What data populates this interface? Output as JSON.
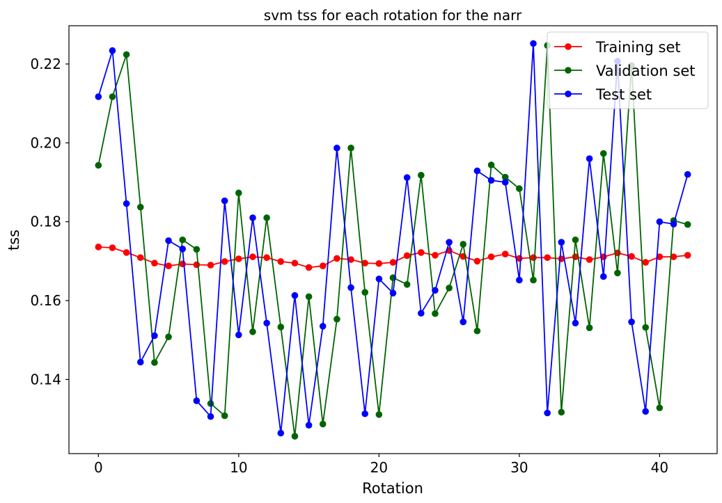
{
  "chart_data": {
    "type": "line",
    "title": "svm tss for each rotation for the narr",
    "xlabel": "Rotation",
    "ylabel": "tss",
    "xlim": [
      -2.1,
      44.1
    ],
    "ylim": [
      0.1212,
      0.2297
    ],
    "xticks": [
      0,
      10,
      20,
      30,
      40
    ],
    "xtick_labels": [
      "0",
      "10",
      "20",
      "30",
      "40"
    ],
    "yticks": [
      0.14,
      0.16,
      0.18,
      0.2,
      0.22
    ],
    "ytick_labels": [
      "0.14",
      "0.16",
      "0.18",
      "0.20",
      "0.22"
    ],
    "grid": false,
    "legend_position": "top-right",
    "x": [
      0,
      1,
      2,
      3,
      4,
      5,
      6,
      7,
      8,
      9,
      10,
      11,
      12,
      13,
      14,
      15,
      16,
      17,
      18,
      19,
      20,
      21,
      22,
      23,
      24,
      25,
      26,
      27,
      28,
      29,
      30,
      31,
      32,
      33,
      34,
      35,
      36,
      37,
      38,
      39,
      40,
      41,
      42
    ],
    "series": [
      {
        "name": "Training set",
        "color": "#ff0000",
        "values": [
          0.1736,
          0.1734,
          0.1722,
          0.1709,
          0.1695,
          0.1688,
          0.1693,
          0.1691,
          0.169,
          0.1699,
          0.1706,
          0.1711,
          0.1709,
          0.1699,
          0.1695,
          0.1684,
          0.1688,
          0.1707,
          0.1704,
          0.1695,
          0.1694,
          0.1697,
          0.1714,
          0.1722,
          0.1715,
          0.1727,
          0.1712,
          0.17,
          0.1711,
          0.1718,
          0.1707,
          0.1709,
          0.1709,
          0.1706,
          0.1711,
          0.1704,
          0.1711,
          0.1721,
          0.1712,
          0.1697,
          0.1711,
          0.1711,
          0.1715
        ]
      },
      {
        "name": "Validation set",
        "color": "#006400",
        "values": [
          0.1943,
          0.2117,
          0.2224,
          0.1837,
          0.1443,
          0.1508,
          0.1754,
          0.173,
          0.1339,
          0.1308,
          0.1873,
          0.1521,
          0.181,
          0.1533,
          0.1256,
          0.161,
          0.1287,
          0.1553,
          0.1987,
          0.1621,
          0.1311,
          0.1658,
          0.1641,
          0.1918,
          0.1567,
          0.1632,
          0.1743,
          0.1523,
          0.1944,
          0.1913,
          0.1884,
          0.1652,
          0.2247,
          0.1317,
          0.1754,
          0.1531,
          0.1973,
          0.167,
          0.2196,
          0.1532,
          0.1328,
          0.1803,
          0.1793
        ]
      },
      {
        "name": "Test set",
        "color": "#0000ff",
        "values": [
          0.2117,
          0.2234,
          0.1846,
          0.1444,
          0.1511,
          0.1752,
          0.1731,
          0.1346,
          0.1306,
          0.1853,
          0.1513,
          0.181,
          0.1543,
          0.1264,
          0.1613,
          0.1284,
          0.1535,
          0.1987,
          0.1633,
          0.1313,
          0.1655,
          0.1619,
          0.1912,
          0.1568,
          0.1626,
          0.1748,
          0.1546,
          0.1929,
          0.1905,
          0.19,
          0.1652,
          0.2252,
          0.1315,
          0.1748,
          0.1543,
          0.196,
          0.1661,
          0.2207,
          0.1546,
          0.1319,
          0.18,
          0.1794,
          0.192
        ]
      }
    ]
  }
}
